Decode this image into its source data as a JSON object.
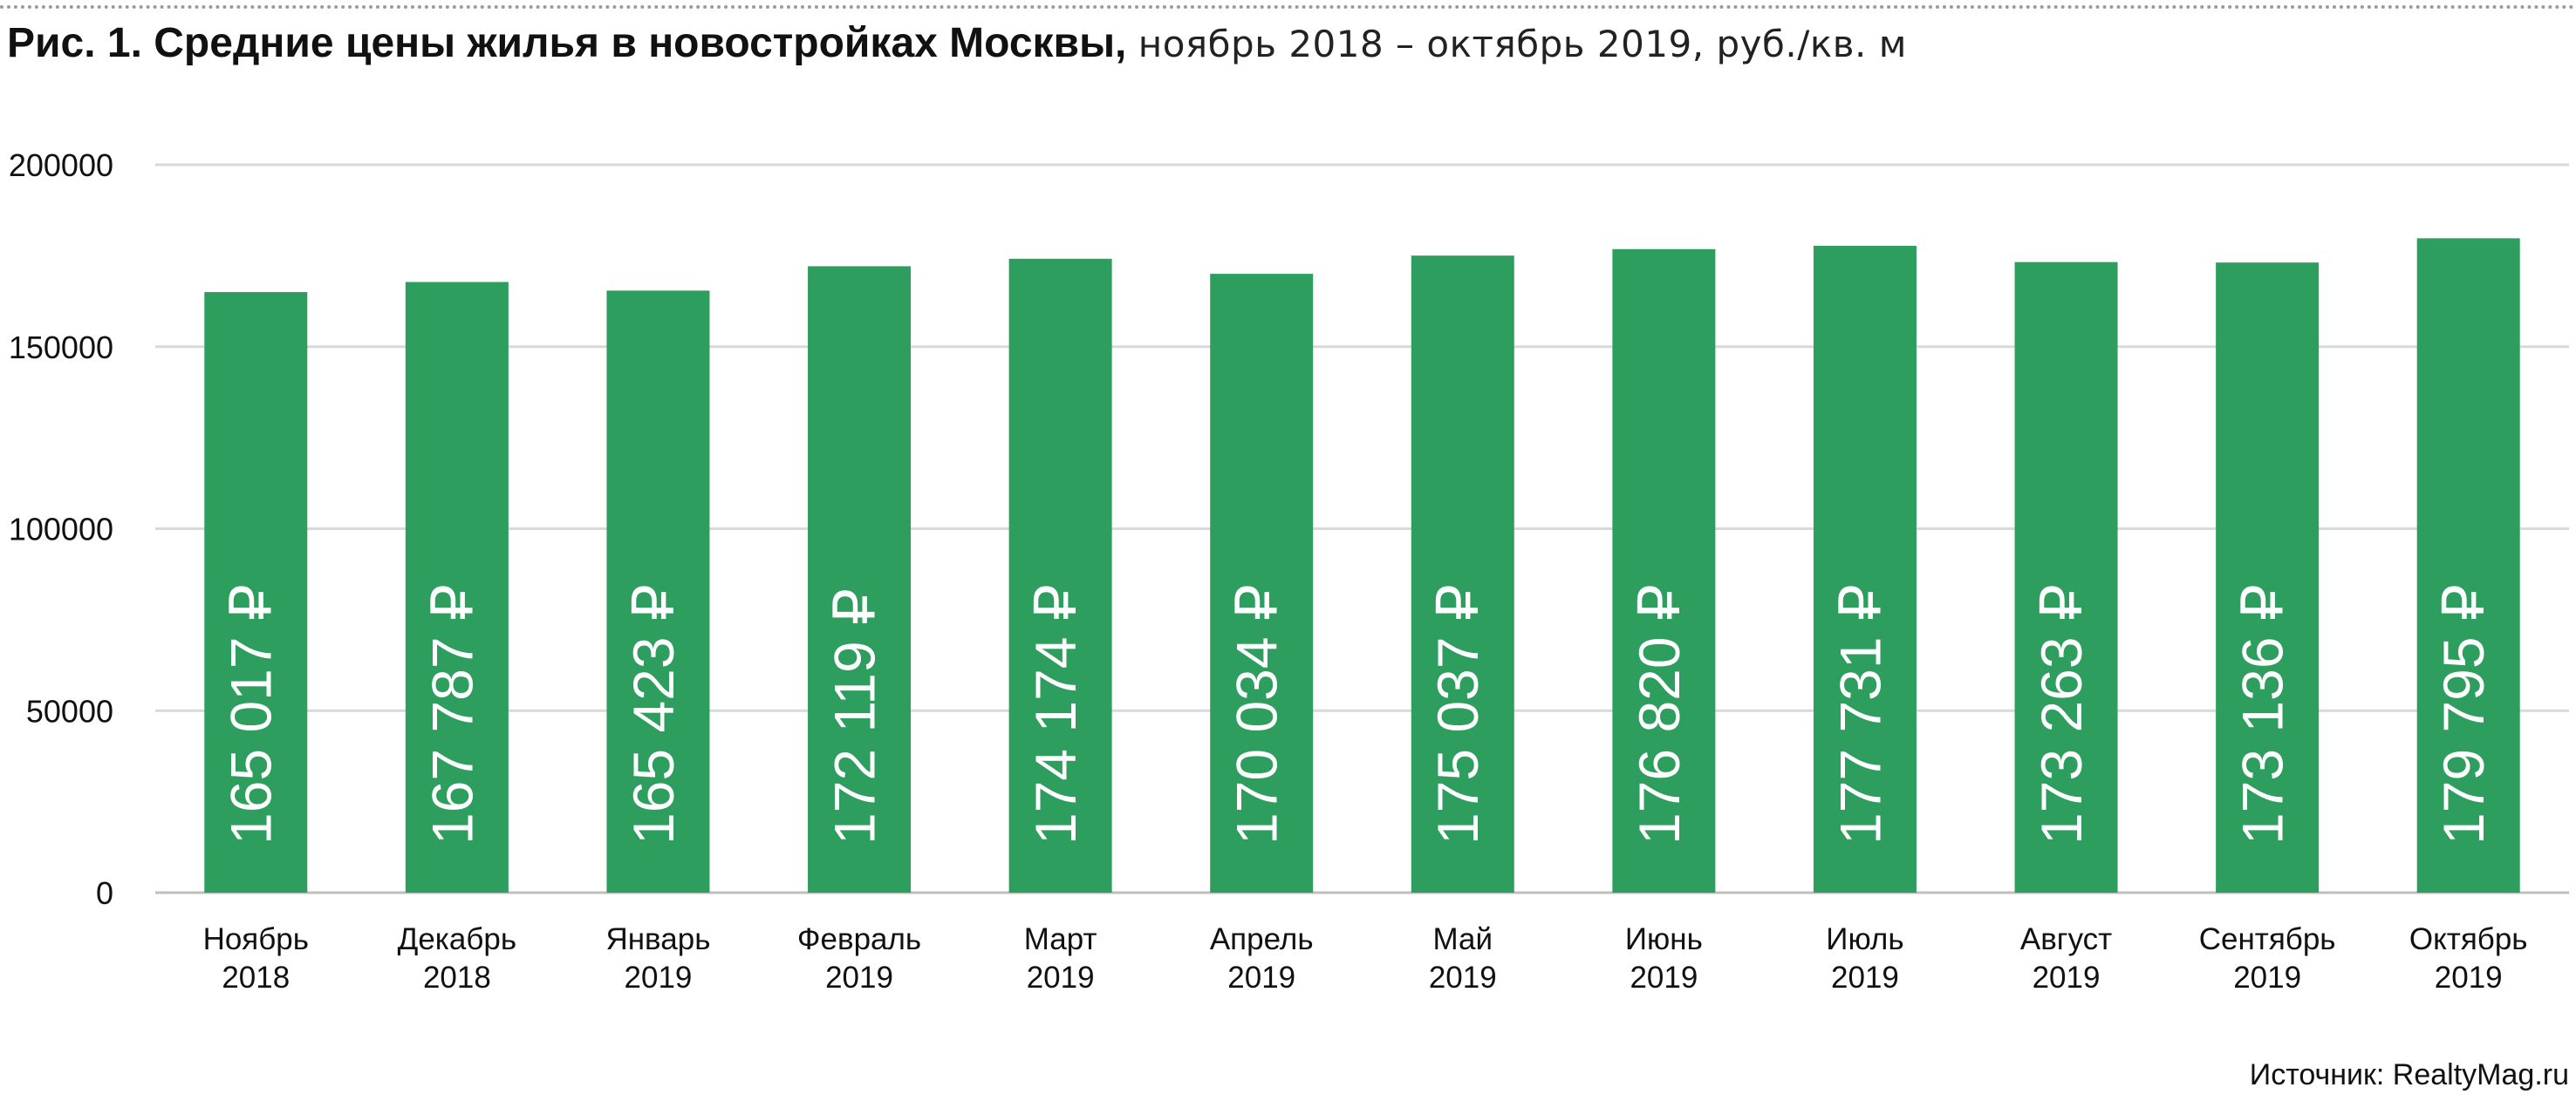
{
  "title": {
    "bold": "Рис. 1. Средние цены жилья в новостройках Москвы,",
    "light": "ноябрь 2018 – октябрь 2019, руб./кв. м"
  },
  "source": "Источник: RealtyMag.ru",
  "colors": {
    "bar": "#2e9e5e",
    "grid": "#d9d9d9",
    "axis": "#bfbfbf",
    "label": "#ffffff"
  },
  "chart_data": {
    "type": "bar",
    "title": "Рис. 1. Средние цены жилья в новостройках Москвы, ноябрь 2018 – октябрь 2019, руб./кв. м",
    "categories": [
      [
        "Ноябрь",
        "2018"
      ],
      [
        "Декабрь",
        "2018"
      ],
      [
        "Январь",
        "2019"
      ],
      [
        "Февраль",
        "2019"
      ],
      [
        "Март",
        "2019"
      ],
      [
        "Апрель",
        "2019"
      ],
      [
        "Май",
        "2019"
      ],
      [
        "Июнь",
        "2019"
      ],
      [
        "Июль",
        "2019"
      ],
      [
        "Август",
        "2019"
      ],
      [
        "Сентябрь",
        "2019"
      ],
      [
        "Октябрь",
        "2019"
      ]
    ],
    "values": [
      165017,
      167787,
      165423,
      172119,
      174174,
      170034,
      175037,
      176820,
      177731,
      173263,
      173136,
      179795
    ],
    "value_labels": [
      "165 017 ₽",
      "167 787 ₽",
      "165 423 ₽",
      "172 119 ₽",
      "174 174 ₽",
      "170 034 ₽",
      "175 037 ₽",
      "176 820 ₽",
      "177 731 ₽",
      "173 263 ₽",
      "173 136 ₽",
      "179 795 ₽"
    ],
    "yticks": [
      0,
      50000,
      100000,
      150000,
      200000
    ],
    "ylim": [
      0,
      200000
    ],
    "xlabel": "",
    "ylabel": "",
    "grid": true,
    "legend": "none"
  }
}
